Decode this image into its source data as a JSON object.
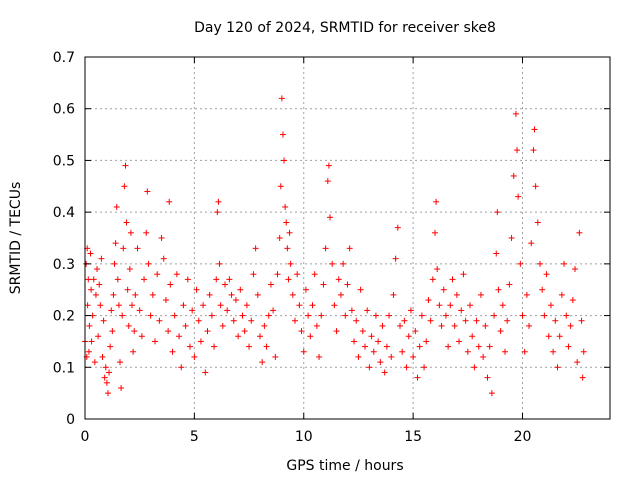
{
  "chart_data": {
    "type": "scatter",
    "title": "Day 120 of 2024, SRMTID for receiver ske8",
    "xlabel": "GPS time / hours",
    "ylabel": "SRMTID / TECUs",
    "xlim": [
      0,
      24
    ],
    "ylim": [
      0,
      0.7
    ],
    "xticks": [
      0,
      5,
      10,
      15,
      20
    ],
    "yticks": [
      0,
      0.1,
      0.2,
      0.3,
      0.4,
      0.5,
      0.6,
      0.7
    ],
    "grid": true,
    "marker": "plus",
    "series": [
      {
        "name": "SRMTID",
        "color": "#ff0000",
        "points": [
          [
            0.0,
            0.15
          ],
          [
            0.05,
            0.3
          ],
          [
            0.08,
            0.12
          ],
          [
            0.1,
            0.33
          ],
          [
            0.12,
            0.22
          ],
          [
            0.15,
            0.27
          ],
          [
            0.18,
            0.13
          ],
          [
            0.2,
            0.18
          ],
          [
            0.25,
            0.32
          ],
          [
            0.28,
            0.25
          ],
          [
            0.3,
            0.15
          ],
          [
            0.35,
            0.2
          ],
          [
            0.4,
            0.27
          ],
          [
            0.45,
            0.11
          ],
          [
            0.5,
            0.24
          ],
          [
            0.55,
            0.29
          ],
          [
            0.6,
            0.16
          ],
          [
            0.65,
            0.26
          ],
          [
            0.7,
            0.22
          ],
          [
            0.75,
            0.31
          ],
          [
            0.8,
            0.12
          ],
          [
            0.85,
            0.19
          ],
          [
            0.9,
            0.08
          ],
          [
            0.95,
            0.1
          ],
          [
            1.0,
            0.07
          ],
          [
            1.05,
            0.05
          ],
          [
            1.1,
            0.09
          ],
          [
            1.15,
            0.14
          ],
          [
            1.2,
            0.21
          ],
          [
            1.25,
            0.17
          ],
          [
            1.3,
            0.24
          ],
          [
            1.35,
            0.3
          ],
          [
            1.4,
            0.34
          ],
          [
            1.45,
            0.41
          ],
          [
            1.5,
            0.27
          ],
          [
            1.55,
            0.22
          ],
          [
            1.6,
            0.11
          ],
          [
            1.65,
            0.06
          ],
          [
            1.7,
            0.2
          ],
          [
            1.75,
            0.33
          ],
          [
            1.8,
            0.45
          ],
          [
            1.85,
            0.49
          ],
          [
            1.9,
            0.38
          ],
          [
            1.95,
            0.25
          ],
          [
            2.0,
            0.18
          ],
          [
            2.05,
            0.29
          ],
          [
            2.1,
            0.36
          ],
          [
            2.15,
            0.22
          ],
          [
            2.2,
            0.13
          ],
          [
            2.25,
            0.17
          ],
          [
            2.3,
            0.24
          ],
          [
            2.4,
            0.33
          ],
          [
            2.5,
            0.21
          ],
          [
            2.6,
            0.16
          ],
          [
            2.7,
            0.27
          ],
          [
            2.8,
            0.36
          ],
          [
            2.85,
            0.44
          ],
          [
            2.9,
            0.3
          ],
          [
            3.0,
            0.2
          ],
          [
            3.1,
            0.24
          ],
          [
            3.2,
            0.15
          ],
          [
            3.3,
            0.28
          ],
          [
            3.4,
            0.19
          ],
          [
            3.5,
            0.35
          ],
          [
            3.6,
            0.31
          ],
          [
            3.7,
            0.23
          ],
          [
            3.8,
            0.17
          ],
          [
            3.85,
            0.42
          ],
          [
            3.9,
            0.26
          ],
          [
            4.0,
            0.13
          ],
          [
            4.1,
            0.2
          ],
          [
            4.2,
            0.28
          ],
          [
            4.3,
            0.16
          ],
          [
            4.4,
            0.1
          ],
          [
            4.5,
            0.22
          ],
          [
            4.6,
            0.18
          ],
          [
            4.7,
            0.27
          ],
          [
            4.8,
            0.14
          ],
          [
            4.9,
            0.21
          ],
          [
            5.0,
            0.12
          ],
          [
            5.1,
            0.25
          ],
          [
            5.2,
            0.19
          ],
          [
            5.3,
            0.15
          ],
          [
            5.4,
            0.22
          ],
          [
            5.5,
            0.09
          ],
          [
            5.6,
            0.17
          ],
          [
            5.7,
            0.24
          ],
          [
            5.8,
            0.2
          ],
          [
            5.9,
            0.14
          ],
          [
            6.0,
            0.27
          ],
          [
            6.05,
            0.4
          ],
          [
            6.1,
            0.42
          ],
          [
            6.15,
            0.3
          ],
          [
            6.2,
            0.22
          ],
          [
            6.3,
            0.18
          ],
          [
            6.4,
            0.26
          ],
          [
            6.5,
            0.21
          ],
          [
            6.6,
            0.27
          ],
          [
            6.7,
            0.24
          ],
          [
            6.8,
            0.19
          ],
          [
            6.9,
            0.23
          ],
          [
            7.0,
            0.16
          ],
          [
            7.1,
            0.25
          ],
          [
            7.2,
            0.2
          ],
          [
            7.3,
            0.17
          ],
          [
            7.4,
            0.22
          ],
          [
            7.5,
            0.14
          ],
          [
            7.6,
            0.19
          ],
          [
            7.7,
            0.28
          ],
          [
            7.8,
            0.33
          ],
          [
            7.9,
            0.24
          ],
          [
            8.0,
            0.16
          ],
          [
            8.1,
            0.11
          ],
          [
            8.2,
            0.18
          ],
          [
            8.3,
            0.14
          ],
          [
            8.4,
            0.2
          ],
          [
            8.5,
            0.26
          ],
          [
            8.6,
            0.21
          ],
          [
            8.7,
            0.12
          ],
          [
            8.8,
            0.28
          ],
          [
            8.9,
            0.35
          ],
          [
            8.95,
            0.45
          ],
          [
            9.0,
            0.62
          ],
          [
            9.05,
            0.55
          ],
          [
            9.1,
            0.5
          ],
          [
            9.15,
            0.41
          ],
          [
            9.2,
            0.38
          ],
          [
            9.25,
            0.33
          ],
          [
            9.3,
            0.27
          ],
          [
            9.35,
            0.36
          ],
          [
            9.4,
            0.3
          ],
          [
            9.5,
            0.24
          ],
          [
            9.6,
            0.19
          ],
          [
            9.7,
            0.28
          ],
          [
            9.8,
            0.22
          ],
          [
            9.9,
            0.17
          ],
          [
            10.0,
            0.13
          ],
          [
            10.1,
            0.25
          ],
          [
            10.2,
            0.2
          ],
          [
            10.3,
            0.16
          ],
          [
            10.4,
            0.22
          ],
          [
            10.5,
            0.28
          ],
          [
            10.6,
            0.18
          ],
          [
            10.7,
            0.12
          ],
          [
            10.8,
            0.2
          ],
          [
            10.9,
            0.26
          ],
          [
            11.0,
            0.33
          ],
          [
            11.1,
            0.46
          ],
          [
            11.15,
            0.49
          ],
          [
            11.2,
            0.39
          ],
          [
            11.3,
            0.3
          ],
          [
            11.4,
            0.22
          ],
          [
            11.5,
            0.17
          ],
          [
            11.6,
            0.27
          ],
          [
            11.7,
            0.24
          ],
          [
            11.8,
            0.3
          ],
          [
            11.9,
            0.2
          ],
          [
            12.0,
            0.26
          ],
          [
            12.1,
            0.33
          ],
          [
            12.2,
            0.21
          ],
          [
            12.3,
            0.15
          ],
          [
            12.4,
            0.19
          ],
          [
            12.5,
            0.12
          ],
          [
            12.6,
            0.25
          ],
          [
            12.7,
            0.17
          ],
          [
            12.8,
            0.14
          ],
          [
            12.9,
            0.21
          ],
          [
            13.0,
            0.1
          ],
          [
            13.1,
            0.16
          ],
          [
            13.2,
            0.13
          ],
          [
            13.3,
            0.2
          ],
          [
            13.4,
            0.15
          ],
          [
            13.5,
            0.11
          ],
          [
            13.6,
            0.18
          ],
          [
            13.7,
            0.09
          ],
          [
            13.8,
            0.14
          ],
          [
            13.9,
            0.2
          ],
          [
            14.0,
            0.12
          ],
          [
            14.1,
            0.24
          ],
          [
            14.2,
            0.31
          ],
          [
            14.3,
            0.37
          ],
          [
            14.4,
            0.18
          ],
          [
            14.5,
            0.13
          ],
          [
            14.6,
            0.19
          ],
          [
            14.7,
            0.1
          ],
          [
            14.8,
            0.16
          ],
          [
            14.9,
            0.21
          ],
          [
            15.0,
            0.12
          ],
          [
            15.1,
            0.17
          ],
          [
            15.2,
            0.08
          ],
          [
            15.3,
            0.14
          ],
          [
            15.4,
            0.2
          ],
          [
            15.5,
            0.1
          ],
          [
            15.6,
            0.15
          ],
          [
            15.7,
            0.23
          ],
          [
            15.8,
            0.19
          ],
          [
            15.9,
            0.27
          ],
          [
            16.0,
            0.36
          ],
          [
            16.05,
            0.42
          ],
          [
            16.1,
            0.29
          ],
          [
            16.2,
            0.22
          ],
          [
            16.3,
            0.18
          ],
          [
            16.4,
            0.25
          ],
          [
            16.5,
            0.2
          ],
          [
            16.6,
            0.14
          ],
          [
            16.7,
            0.22
          ],
          [
            16.8,
            0.27
          ],
          [
            16.9,
            0.18
          ],
          [
            17.0,
            0.24
          ],
          [
            17.1,
            0.15
          ],
          [
            17.2,
            0.21
          ],
          [
            17.3,
            0.28
          ],
          [
            17.4,
            0.19
          ],
          [
            17.5,
            0.13
          ],
          [
            17.6,
            0.22
          ],
          [
            17.7,
            0.16
          ],
          [
            17.8,
            0.1
          ],
          [
            17.9,
            0.19
          ],
          [
            18.0,
            0.14
          ],
          [
            18.1,
            0.24
          ],
          [
            18.2,
            0.12
          ],
          [
            18.3,
            0.18
          ],
          [
            18.4,
            0.08
          ],
          [
            18.5,
            0.14
          ],
          [
            18.6,
            0.05
          ],
          [
            18.7,
            0.2
          ],
          [
            18.8,
            0.32
          ],
          [
            18.85,
            0.4
          ],
          [
            18.9,
            0.25
          ],
          [
            19.0,
            0.17
          ],
          [
            19.1,
            0.22
          ],
          [
            19.2,
            0.13
          ],
          [
            19.3,
            0.19
          ],
          [
            19.4,
            0.26
          ],
          [
            19.5,
            0.35
          ],
          [
            19.6,
            0.47
          ],
          [
            19.7,
            0.59
          ],
          [
            19.75,
            0.52
          ],
          [
            19.8,
            0.43
          ],
          [
            19.9,
            0.3
          ],
          [
            20.0,
            0.2
          ],
          [
            20.1,
            0.13
          ],
          [
            20.2,
            0.24
          ],
          [
            20.3,
            0.18
          ],
          [
            20.4,
            0.34
          ],
          [
            20.5,
            0.52
          ],
          [
            20.55,
            0.56
          ],
          [
            20.6,
            0.45
          ],
          [
            20.7,
            0.38
          ],
          [
            20.8,
            0.3
          ],
          [
            20.9,
            0.25
          ],
          [
            21.0,
            0.2
          ],
          [
            21.1,
            0.28
          ],
          [
            21.2,
            0.16
          ],
          [
            21.3,
            0.22
          ],
          [
            21.4,
            0.13
          ],
          [
            21.5,
            0.19
          ],
          [
            21.6,
            0.1
          ],
          [
            21.7,
            0.16
          ],
          [
            21.8,
            0.24
          ],
          [
            21.9,
            0.3
          ],
          [
            22.0,
            0.2
          ],
          [
            22.1,
            0.14
          ],
          [
            22.2,
            0.18
          ],
          [
            22.3,
            0.23
          ],
          [
            22.4,
            0.29
          ],
          [
            22.5,
            0.11
          ],
          [
            22.6,
            0.36
          ],
          [
            22.7,
            0.19
          ],
          [
            22.75,
            0.08
          ],
          [
            22.8,
            0.13
          ]
        ]
      }
    ]
  }
}
